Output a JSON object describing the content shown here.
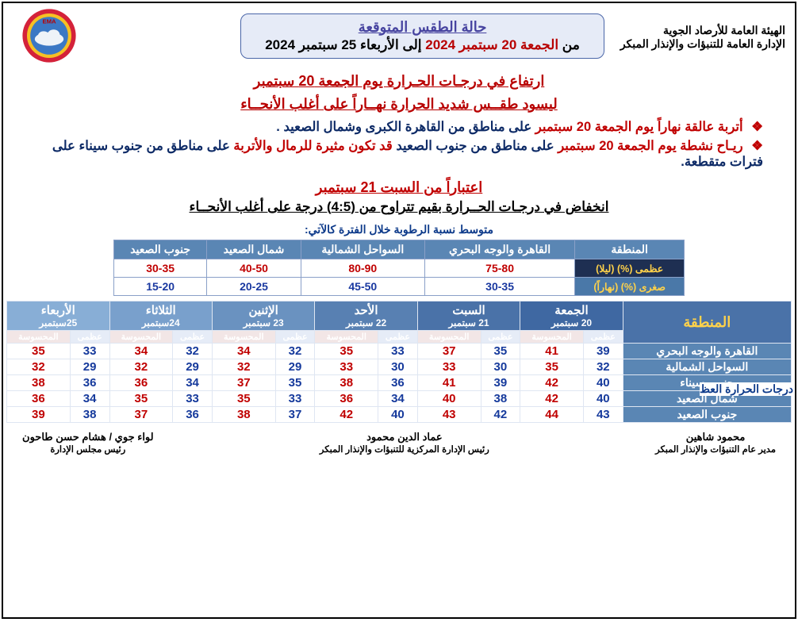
{
  "org": {
    "line1": "الهيئة العامة للأرصاد الجوية",
    "line2": "الإدارة العامة للتنبؤات والإنذار المبكر"
  },
  "logo": {
    "outer": "#d4223a",
    "ring": "#f6c024",
    "sky": "#3b78c4",
    "cloud": "#eef3f8",
    "label": "EMA"
  },
  "title": {
    "main": "حالة الطقس المتوقعة",
    "prefix": "من ",
    "from": "الجمعة 20 سبتمبر 2024",
    "mid": " إلى ",
    "to": "الأربعاء 25 سبتمبر 2024"
  },
  "headlines": {
    "h1": "ارتفاع في درجـات الحـرارة يوم الجمعة 20 سبتمبر",
    "h2": "ليسود طقــس شديد الحرارة نهــاراً على أغلب الأنحــاء"
  },
  "bullets": [
    {
      "red": "أتربة عالقة نهاراً يوم الجمعة 20 سبتمبر",
      "dark": "على مناطق من القاهرة الكبرى وشمال الصعيد ."
    },
    {
      "red": "ريـاح نشطة يوم الجمعة 20 سبتمبر",
      "dark1": "على مناطق من جنوب الصعيد ",
      "red2": "قد تكون مثيرة للرمال والأتربة",
      "dark2": "على مناطق من جنوب سيناء على فترات متقطعة."
    }
  ],
  "section2": {
    "sat": "اعتباراً من السبت 21 سبتمبر",
    "drop": "انخفاض في درجـات الحــرارة بقيم تتراوح من (4:5) درجة على أغلب الأنحــاء"
  },
  "humidity": {
    "label": "متوسط نسبة الرطوبة خلال الفترة كالآتي:",
    "headers": [
      "المنطقة",
      "القاهرة والوجه البحري",
      "السواحل الشمالية",
      "شمال الصعيد",
      "جنوب الصعيد"
    ],
    "rowlabels": [
      "عظمى (%) (ليلا)",
      "صغرى (%) (نهاراً)"
    ],
    "rows": [
      [
        "75-80",
        "80-90",
        "40-50",
        "30-35"
      ],
      [
        "30-35",
        "45-50",
        "20-25",
        "15-20"
      ]
    ]
  },
  "side_label": "درجات الحرارة العظ",
  "temps": {
    "region_header": "المنطقة",
    "days": [
      {
        "name": "الجمعة",
        "date": "20 سبتمبر",
        "cls": "day1"
      },
      {
        "name": "السبت",
        "date": "21 سبتمبر",
        "cls": "day2"
      },
      {
        "name": "الأحد",
        "date": "22 سبتمبر",
        "cls": "day3"
      },
      {
        "name": "الإثنين",
        "date": "23 سبتمبر",
        "cls": "day4"
      },
      {
        "name": "الثلاثاء",
        "date": "24سبتمبر",
        "cls": "day5"
      },
      {
        "name": "الأربعاء",
        "date": "25سبتمبر",
        "cls": "day6"
      }
    ],
    "sub": [
      "عظمى",
      "المحسوسة"
    ],
    "regions": [
      {
        "name": "القاهرة والوجه البحري",
        "vals": [
          [
            39,
            41
          ],
          [
            35,
            37
          ],
          [
            33,
            35
          ],
          [
            32,
            34
          ],
          [
            32,
            34
          ],
          [
            33,
            35
          ]
        ]
      },
      {
        "name": "السواحل الشمالية",
        "vals": [
          [
            32,
            35
          ],
          [
            30,
            33
          ],
          [
            30,
            33
          ],
          [
            29,
            32
          ],
          [
            29,
            32
          ],
          [
            29,
            32
          ]
        ]
      },
      {
        "name": "جنوب سيناء",
        "vals": [
          [
            40,
            42
          ],
          [
            39,
            41
          ],
          [
            36,
            38
          ],
          [
            35,
            37
          ],
          [
            34,
            36
          ],
          [
            36,
            38
          ]
        ]
      },
      {
        "name": "شمال الصعيد",
        "vals": [
          [
            40,
            42
          ],
          [
            38,
            40
          ],
          [
            34,
            36
          ],
          [
            33,
            35
          ],
          [
            33,
            35
          ],
          [
            34,
            36
          ]
        ]
      },
      {
        "name": "جنوب الصعيد",
        "vals": [
          [
            43,
            44
          ],
          [
            42,
            43
          ],
          [
            40,
            42
          ],
          [
            37,
            38
          ],
          [
            36,
            37
          ],
          [
            38,
            39
          ]
        ]
      }
    ]
  },
  "footer": {
    "right": {
      "name": "محمود شاهين",
      "title": "مدير عام التنبؤات والإنذار المبكر"
    },
    "center": {
      "name": "عماد الدين محمود",
      "title": "رئيس الإدارة المركزية للتنبؤات والإنذار المبكر"
    },
    "left": {
      "name": "لواء جوي / هشام حسن طاحون",
      "title": "رئيس مجلس الإدارة"
    }
  }
}
